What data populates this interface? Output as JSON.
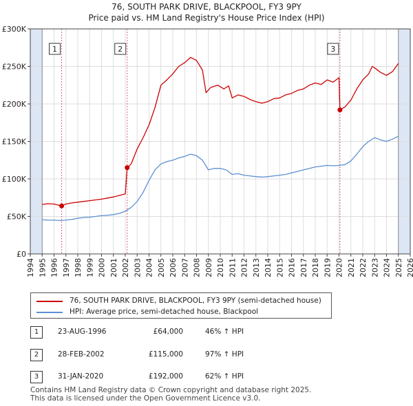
{
  "chart_data": {
    "type": "line",
    "title": "76, SOUTH PARK DRIVE, BLACKPOOL, FY3 9PY",
    "subtitle": "Price paid vs. HM Land Registry's House Price Index (HPI)",
    "xlim": [
      1994,
      2026
    ],
    "ylim": [
      0,
      300000
    ],
    "x_ticks": [
      "1994",
      "1995",
      "1996",
      "1997",
      "1998",
      "1999",
      "2000",
      "2001",
      "2002",
      "2003",
      "2004",
      "2005",
      "2006",
      "2007",
      "2008",
      "2009",
      "2010",
      "2011",
      "2012",
      "2013",
      "2014",
      "2015",
      "2016",
      "2017",
      "2018",
      "2019",
      "2020",
      "2021",
      "2022",
      "2023",
      "2024",
      "2025",
      "2026"
    ],
    "y_ticks": [
      {
        "value": 0,
        "label": "£0"
      },
      {
        "value": 50000,
        "label": "£50K"
      },
      {
        "value": 100000,
        "label": "£100K"
      },
      {
        "value": 150000,
        "label": "£150K"
      },
      {
        "value": 200000,
        "label": "£200K"
      },
      {
        "value": 250000,
        "label": "£250K"
      },
      {
        "value": 300000,
        "label": "£300K"
      }
    ],
    "data_range": [
      1995.0,
      2025.0
    ],
    "colors": {
      "property": "#cc0000",
      "hpi": "#5b8fd1",
      "shade": "#dce6f5",
      "grid": "#dddddd",
      "sale_line": "#e06070"
    },
    "series": [
      {
        "name": "76, SOUTH PARK DRIVE, BLACKPOOL, FY3 9PY (semi-detached house)",
        "color": "#cc0000",
        "points": [
          [
            1995.0,
            66000
          ],
          [
            1995.5,
            67000
          ],
          [
            1996.0,
            66500
          ],
          [
            1996.64,
            64000
          ],
          [
            1997.0,
            66500
          ],
          [
            1997.5,
            68000
          ],
          [
            1998.0,
            69000
          ],
          [
            1998.5,
            70000
          ],
          [
            1999.0,
            71000
          ],
          [
            1999.5,
            72000
          ],
          [
            2000.0,
            73000
          ],
          [
            2000.5,
            74500
          ],
          [
            2001.0,
            76000
          ],
          [
            2001.5,
            78000
          ],
          [
            2002.0,
            80000
          ],
          [
            2002.16,
            115000
          ],
          [
            2002.5,
            120000
          ],
          [
            2003.0,
            140000
          ],
          [
            2003.5,
            155000
          ],
          [
            2004.0,
            172000
          ],
          [
            2004.5,
            195000
          ],
          [
            2005.0,
            225000
          ],
          [
            2005.5,
            232000
          ],
          [
            2006.0,
            240000
          ],
          [
            2006.5,
            250000
          ],
          [
            2007.0,
            255000
          ],
          [
            2007.5,
            262000
          ],
          [
            2008.0,
            258000
          ],
          [
            2008.5,
            245000
          ],
          [
            2008.8,
            215000
          ],
          [
            2009.2,
            222000
          ],
          [
            2009.8,
            225000
          ],
          [
            2010.3,
            220000
          ],
          [
            2010.7,
            224000
          ],
          [
            2011.0,
            208000
          ],
          [
            2011.5,
            212000
          ],
          [
            2012.0,
            210000
          ],
          [
            2012.5,
            206000
          ],
          [
            2013.0,
            203000
          ],
          [
            2013.5,
            201000
          ],
          [
            2014.0,
            203000
          ],
          [
            2014.5,
            207000
          ],
          [
            2015.0,
            208000
          ],
          [
            2015.5,
            212000
          ],
          [
            2016.0,
            214000
          ],
          [
            2016.5,
            218000
          ],
          [
            2017.0,
            220000
          ],
          [
            2017.5,
            225000
          ],
          [
            2018.0,
            228000
          ],
          [
            2018.5,
            226000
          ],
          [
            2019.0,
            232000
          ],
          [
            2019.5,
            229000
          ],
          [
            2020.0,
            235000
          ],
          [
            2020.08,
            192000
          ],
          [
            2020.5,
            196000
          ],
          [
            2021.0,
            205000
          ],
          [
            2021.5,
            220000
          ],
          [
            2022.0,
            232000
          ],
          [
            2022.5,
            240000
          ],
          [
            2022.8,
            250000
          ],
          [
            2023.0,
            248000
          ],
          [
            2023.5,
            242000
          ],
          [
            2024.0,
            238000
          ],
          [
            2024.5,
            243000
          ],
          [
            2025.0,
            254000
          ]
        ]
      },
      {
        "name": "HPI: Average price, semi-detached house, Blackpool",
        "color": "#5b8fd1",
        "points": [
          [
            1995.0,
            45500
          ],
          [
            1995.5,
            45000
          ],
          [
            1996.0,
            45000
          ],
          [
            1996.5,
            44500
          ],
          [
            1997.0,
            45000
          ],
          [
            1997.5,
            46000
          ],
          [
            1998.0,
            47500
          ],
          [
            1998.5,
            48500
          ],
          [
            1999.0,
            49000
          ],
          [
            1999.5,
            50000
          ],
          [
            2000.0,
            51000
          ],
          [
            2000.5,
            51500
          ],
          [
            2001.0,
            52500
          ],
          [
            2001.5,
            54000
          ],
          [
            2002.0,
            57000
          ],
          [
            2002.5,
            62000
          ],
          [
            2003.0,
            70000
          ],
          [
            2003.5,
            82000
          ],
          [
            2004.0,
            98000
          ],
          [
            2004.5,
            112000
          ],
          [
            2005.0,
            120000
          ],
          [
            2005.5,
            123000
          ],
          [
            2006.0,
            125000
          ],
          [
            2006.5,
            128000
          ],
          [
            2007.0,
            130000
          ],
          [
            2007.5,
            133000
          ],
          [
            2008.0,
            131000
          ],
          [
            2008.5,
            125000
          ],
          [
            2009.0,
            112000
          ],
          [
            2009.5,
            114000
          ],
          [
            2010.0,
            114000
          ],
          [
            2010.5,
            112000
          ],
          [
            2011.0,
            106000
          ],
          [
            2011.5,
            107000
          ],
          [
            2012.0,
            105000
          ],
          [
            2012.5,
            104000
          ],
          [
            2013.0,
            103000
          ],
          [
            2013.5,
            102500
          ],
          [
            2014.0,
            103000
          ],
          [
            2014.5,
            104000
          ],
          [
            2015.0,
            105000
          ],
          [
            2015.5,
            106000
          ],
          [
            2016.0,
            108000
          ],
          [
            2016.5,
            110000
          ],
          [
            2017.0,
            112000
          ],
          [
            2017.5,
            114000
          ],
          [
            2018.0,
            116000
          ],
          [
            2018.5,
            117000
          ],
          [
            2019.0,
            118000
          ],
          [
            2019.5,
            117500
          ],
          [
            2020.0,
            118000
          ],
          [
            2020.5,
            119000
          ],
          [
            2021.0,
            124000
          ],
          [
            2021.5,
            133000
          ],
          [
            2022.0,
            143000
          ],
          [
            2022.5,
            150000
          ],
          [
            2023.0,
            155000
          ],
          [
            2023.5,
            152000
          ],
          [
            2024.0,
            150000
          ],
          [
            2024.5,
            153000
          ],
          [
            2025.0,
            157000
          ]
        ]
      }
    ],
    "sales": [
      {
        "num": "1",
        "x": 1996.64,
        "price": 64000
      },
      {
        "num": "2",
        "x": 2002.16,
        "price": 115000
      },
      {
        "num": "3",
        "x": 2020.08,
        "price": 192000
      }
    ]
  },
  "legend": {
    "property_label": "76, SOUTH PARK DRIVE, BLACKPOOL, FY3 9PY (semi-detached house)",
    "hpi_label": "HPI: Average price, semi-detached house, Blackpool"
  },
  "sales_table": [
    {
      "num": "1",
      "date": "23-AUG-1996",
      "price": "£64,000",
      "hpi": "46% ↑ HPI"
    },
    {
      "num": "2",
      "date": "28-FEB-2002",
      "price": "£115,000",
      "hpi": "97% ↑ HPI"
    },
    {
      "num": "3",
      "date": "31-JAN-2020",
      "price": "£192,000",
      "hpi": "62% ↑ HPI"
    }
  ],
  "footer": {
    "line1": "Contains HM Land Registry data © Crown copyright and database right 2025.",
    "line2": "This data is licensed under the Open Government Licence v3.0."
  }
}
